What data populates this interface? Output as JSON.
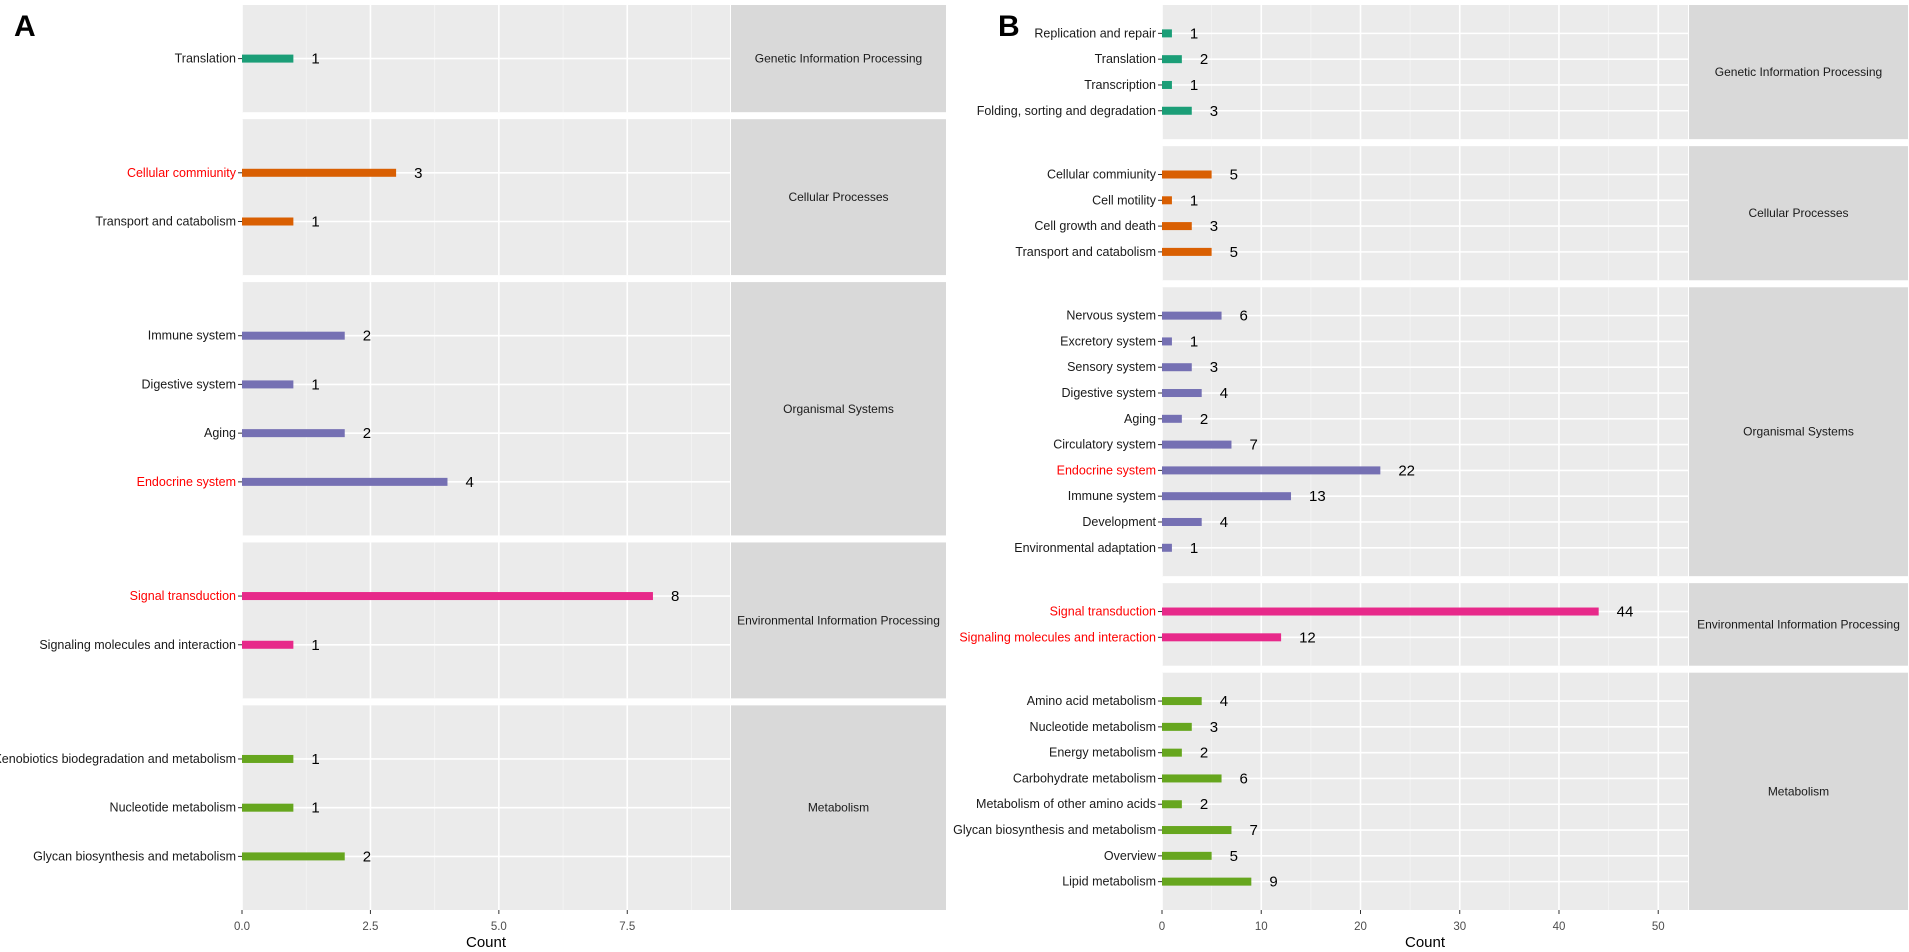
{
  "chart_data": [
    {
      "panel": "A",
      "type": "bar",
      "orientation": "horizontal",
      "xlabel": "Count",
      "xlim": [
        0,
        9.5
      ],
      "xticks": [
        0,
        2.5,
        5,
        7.5
      ],
      "xtick_labels": [
        "0.0",
        "2.5",
        "5.0",
        "7.5"
      ],
      "facets": [
        {
          "name": "Genetic Information Processing",
          "color": "#1b9e77",
          "items": [
            {
              "label": "Translation",
              "value": 1,
              "highlight": false
            }
          ]
        },
        {
          "name": "Cellular Processes",
          "color": "#d95f02",
          "items": [
            {
              "label": "Cellular commiunity",
              "value": 3,
              "highlight": true
            },
            {
              "label": "Transport and catabolism",
              "value": 1,
              "highlight": false
            }
          ]
        },
        {
          "name": "Organismal Systems",
          "color": "#7570b3",
          "items": [
            {
              "label": "Immune system",
              "value": 2,
              "highlight": false
            },
            {
              "label": "Digestive system",
              "value": 1,
              "highlight": false
            },
            {
              "label": "Aging",
              "value": 2,
              "highlight": false
            },
            {
              "label": "Endocrine system",
              "value": 4,
              "highlight": true
            }
          ]
        },
        {
          "name": "Environmental Information Processing",
          "color": "#e7298a",
          "items": [
            {
              "label": "Signal transduction",
              "value": 8,
              "highlight": true
            },
            {
              "label": "Signaling molecules and interaction",
              "value": 1,
              "highlight": false
            }
          ]
        },
        {
          "name": "Metabolism",
          "color": "#66a61e",
          "items": [
            {
              "label": "Xenobiotics biodegradation and metabolism",
              "value": 1,
              "highlight": false
            },
            {
              "label": "Nucleotide metabolism",
              "value": 1,
              "highlight": false
            },
            {
              "label": "Glycan biosynthesis and metabolism",
              "value": 2,
              "highlight": false
            }
          ]
        }
      ]
    },
    {
      "panel": "B",
      "type": "bar",
      "orientation": "horizontal",
      "xlabel": "Count",
      "xlim": [
        0,
        53
      ],
      "xticks": [
        0,
        10,
        20,
        30,
        40,
        50
      ],
      "xtick_labels": [
        "0",
        "10",
        "20",
        "30",
        "40",
        "50"
      ],
      "facets": [
        {
          "name": "Genetic Information Processing",
          "color": "#1b9e77",
          "items": [
            {
              "label": "Replication and repair",
              "value": 1,
              "highlight": false
            },
            {
              "label": "Translation",
              "value": 2,
              "highlight": false
            },
            {
              "label": "Transcription",
              "value": 1,
              "highlight": false
            },
            {
              "label": "Folding, sorting and degradation",
              "value": 3,
              "highlight": false
            }
          ]
        },
        {
          "name": "Cellular Processes",
          "color": "#d95f02",
          "items": [
            {
              "label": "Cellular commiunity",
              "value": 5,
              "highlight": false
            },
            {
              "label": "Cell motility",
              "value": 1,
              "highlight": false
            },
            {
              "label": "Cell growth and death",
              "value": 3,
              "highlight": false
            },
            {
              "label": "Transport and catabolism",
              "value": 5,
              "highlight": false
            }
          ]
        },
        {
          "name": "Organismal Systems",
          "color": "#7570b3",
          "items": [
            {
              "label": "Nervous system",
              "value": 6,
              "highlight": false
            },
            {
              "label": "Excretory system",
              "value": 1,
              "highlight": false
            },
            {
              "label": "Sensory system",
              "value": 3,
              "highlight": false
            },
            {
              "label": "Digestive system",
              "value": 4,
              "highlight": false
            },
            {
              "label": "Aging",
              "value": 2,
              "highlight": false
            },
            {
              "label": "Circulatory system",
              "value": 7,
              "highlight": false
            },
            {
              "label": "Endocrine system",
              "value": 22,
              "highlight": true
            },
            {
              "label": "Immune system",
              "value": 13,
              "highlight": false
            },
            {
              "label": "Development",
              "value": 4,
              "highlight": false
            },
            {
              "label": "Environmental adaptation",
              "value": 1,
              "highlight": false
            }
          ]
        },
        {
          "name": "Environmental Information Processing",
          "color": "#e7298a",
          "items": [
            {
              "label": "Signal transduction",
              "value": 44,
              "highlight": true
            },
            {
              "label": "Signaling molecules and interaction",
              "value": 12,
              "highlight": true
            }
          ]
        },
        {
          "name": "Metabolism",
          "color": "#66a61e",
          "items": [
            {
              "label": "Amino acid metabolism",
              "value": 4,
              "highlight": false
            },
            {
              "label": "Nucleotide metabolism",
              "value": 3,
              "highlight": false
            },
            {
              "label": "Energy metabolism",
              "value": 2,
              "highlight": false
            },
            {
              "label": "Carbohydrate metabolism",
              "value": 6,
              "highlight": false
            },
            {
              "label": "Metabolism of other amino acids",
              "value": 2,
              "highlight": false
            },
            {
              "label": "Glycan biosynthesis and metabolism",
              "value": 7,
              "highlight": false
            },
            {
              "label": "Overview",
              "value": 5,
              "highlight": false
            },
            {
              "label": "Lipid metabolism",
              "value": 9,
              "highlight": false
            }
          ]
        }
      ]
    }
  ],
  "colors": {
    "panel_bg": "#ebebeb",
    "strip_bg": "#d9d9d9",
    "grid_major": "#ffffff",
    "highlight_text": "#ff0000",
    "normal_text": "#1a1a1a"
  }
}
